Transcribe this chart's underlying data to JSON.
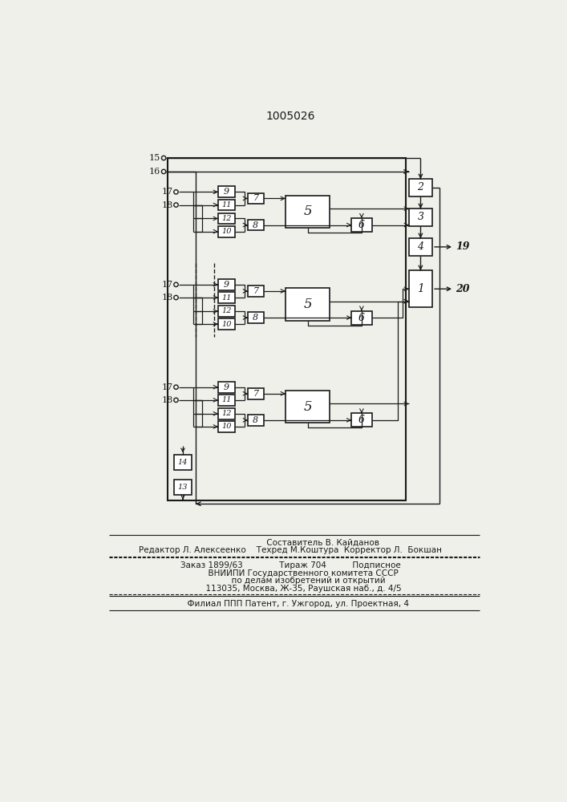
{
  "title": "1005026",
  "bg_color": "#f0f0eb",
  "line_color": "#1a1a1a",
  "box_color": "#ffffff",
  "footer_line1": "                         Составитель В. Кайданов",
  "footer_line2": "Редактор Л. Алексеенко    Техред М.Коштура  Корректор Л.  Бокшан",
  "footer_line3": "Заказ 1899/63              Тираж 704          Подписное",
  "footer_line4": "          ВНИИПИ Государственного комитета СССР",
  "footer_line5": "              по делам изобретений и открытий",
  "footer_line6": "          113035, Москва, Ж-35, Раушская наб., д. 4/5",
  "footer_line7": "      Филиал ППП Патент, г. Ужгород, ул. Проектная, 4"
}
